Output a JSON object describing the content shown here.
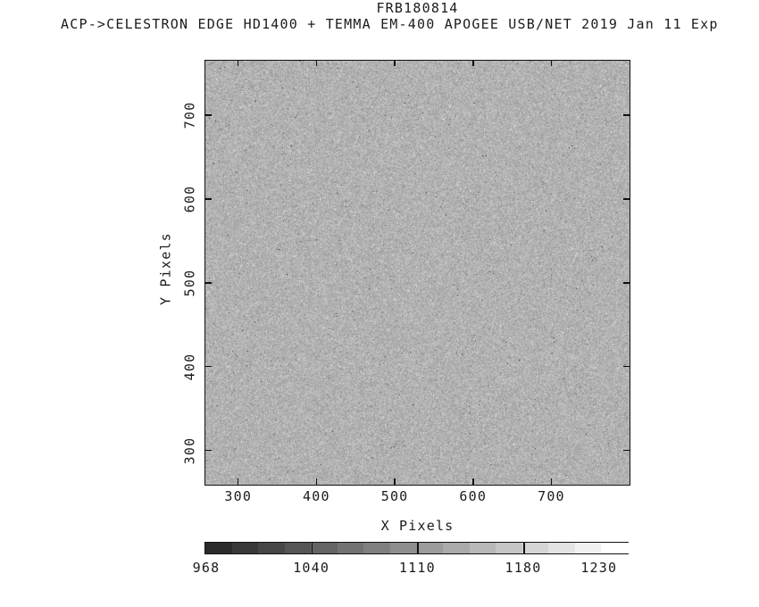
{
  "header": {
    "title": "FRB180814",
    "info_line": "ACP->CELESTRON EDGE HD1400 + TEMMA EM-400 APOGEE USB/NET   2019 Jan 11   Exp"
  },
  "chart_data": {
    "type": "heatmap",
    "title": "FRB180814",
    "xlabel": "X Pixels",
    "ylabel": "Y Pixels",
    "xlim": [
      257,
      801
    ],
    "ylim": [
      258,
      766
    ],
    "x_ticks": [
      300,
      400,
      500,
      600,
      700
    ],
    "y_ticks": [
      300,
      400,
      500,
      600,
      700
    ],
    "grid": false,
    "legend": null,
    "image": {
      "content": "uniform grayscale CCD sky-background noise, fine 1px grain, no resolved sources",
      "noise_mean_gray": 178,
      "noise_sigma_gray": 15,
      "dark_speck_fraction": 0.002,
      "bright_speck_fraction": 0.002
    },
    "colorbar": {
      "orientation": "horizontal",
      "value_min": 968,
      "value_max": 1249,
      "scale_min_for_mapping": 970,
      "steps": 16,
      "gray_start": 43,
      "gray_end": 255,
      "labels": [
        "968",
        "1040",
        "1110",
        "1180",
        "1230"
      ],
      "label_values": [
        968,
        1040,
        1110,
        1180,
        1230
      ],
      "tick_line_values": [
        1040,
        1110,
        1180
      ]
    }
  },
  "colors": {
    "background": "#ffffff",
    "foreground": "#1b1b1b",
    "frame": "#111111"
  }
}
